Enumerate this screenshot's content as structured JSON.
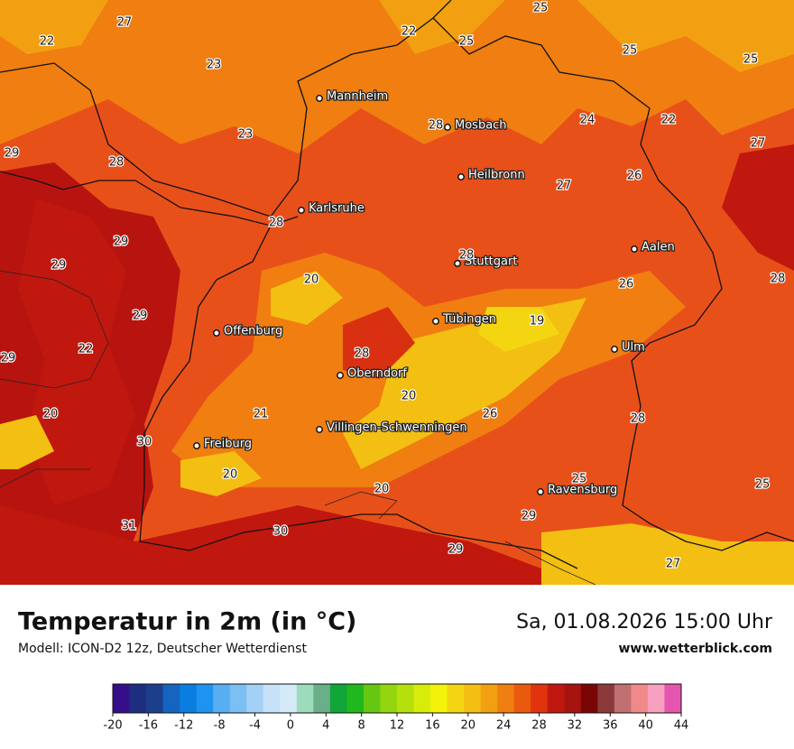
{
  "title": "Temperatur in 2m (in °C)",
  "subtitle": "Modell: ICON-D2 12z, Deutscher Wetterdienst",
  "valid_time": "Sa, 01.08.2026 15:00 Uhr",
  "website": "www.wetterblick.com",
  "cities": [
    "Mannheim",
    "Mosbach",
    "Heilbronn",
    "Karlsruhe",
    "Stuttgart",
    "Aalen",
    "Tübingen",
    "Ulm",
    "Offenburg",
    "Oberndorf",
    "Villingen-Schwenningen",
    "Freiburg",
    "Ravensburg"
  ],
  "temperature_labels": [
    27,
    22,
    23,
    22,
    25,
    25,
    25,
    25,
    29,
    28,
    23,
    28,
    24,
    22,
    27,
    27,
    26,
    28,
    29,
    29,
    28,
    20,
    26,
    28,
    29,
    22,
    19,
    29,
    28,
    20,
    20,
    21,
    26,
    28,
    30,
    20,
    20,
    25,
    25,
    29,
    31,
    30,
    29,
    27
  ],
  "legend": {
    "ticks": [
      -20,
      -16,
      -12,
      -8,
      -4,
      0,
      4,
      8,
      12,
      16,
      20,
      24,
      28,
      32,
      36,
      40,
      44
    ],
    "colors": [
      "#350e8a",
      "#1c2e7d",
      "#1c3f8c",
      "#1464c0",
      "#0a7ee0",
      "#1e94f0",
      "#58aef2",
      "#7cbff2",
      "#a3d1f5",
      "#c6e1f8",
      "#d6eaf8",
      "#9cdcbc",
      "#6aae8a",
      "#11a53a",
      "#20b81c",
      "#66c713",
      "#93d60f",
      "#b6e00c",
      "#d8ec0a",
      "#f3f30a",
      "#f4d512",
      "#f2bf12",
      "#f2a012",
      "#f07e10",
      "#ea5a0e",
      "#e0330e",
      "#c0180e",
      "#a6140f",
      "#7a0505",
      "#8a3a3a",
      "#c07070",
      "#f08a8a",
      "#f8a0c0",
      "#e656b0"
    ]
  }
}
